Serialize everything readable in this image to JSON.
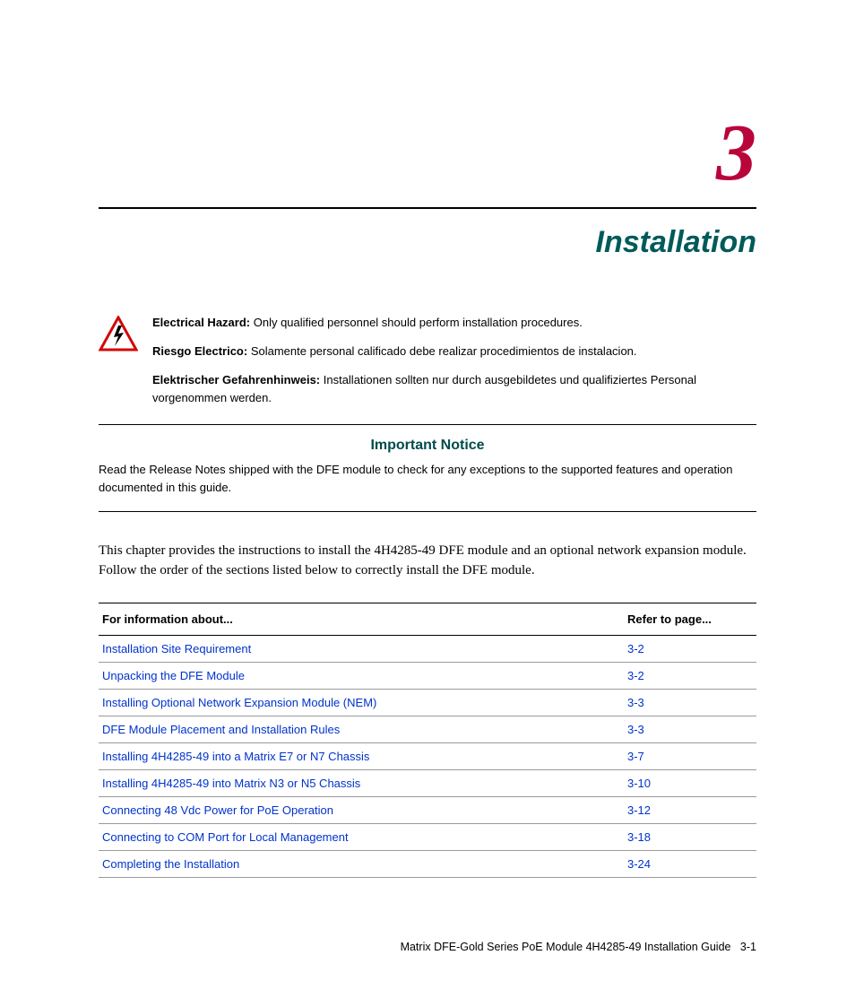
{
  "chapter": {
    "number": "3",
    "number_color": "#b8063a",
    "title": "Installation",
    "title_color": "#005a5a"
  },
  "hazard": {
    "icon_stroke": "#d10808",
    "bolt_fill": "#000000",
    "items": [
      {
        "label": "Electrical Hazard:",
        "text": " Only qualified personnel should perform installation procedures."
      },
      {
        "label": "Riesgo Electrico:",
        "text": " Solamente personal calificado debe realizar procedimientos de instalacion."
      },
      {
        "label": "Elektrischer Gefahrenhinweis:",
        "text": " Installationen sollten nur durch ausgebildetes und qualifiziertes Personal vorgenommen werden."
      }
    ]
  },
  "notice": {
    "title": "Important Notice",
    "body": "Read the Release Notes shipped with the DFE module to check for any exceptions to the supported features and operation documented in this guide."
  },
  "intro": "This chapter provides the instructions to install the 4H4285-49 DFE module and an optional network expansion module. Follow the order of the sections listed below to correctly install the DFE module.",
  "toc": {
    "head_info": "For information about...",
    "head_page": "Refer to page...",
    "link_color": "#0033cc",
    "rows": [
      {
        "title": "Installation Site Requirement",
        "page": "3-2"
      },
      {
        "title": "Unpacking the DFE Module",
        "page": "3-2"
      },
      {
        "title": "Installing Optional Network Expansion Module (NEM)",
        "page": "3-3"
      },
      {
        "title": "DFE Module Placement and Installation Rules",
        "page": "3-3"
      },
      {
        "title": "Installing 4H4285-49 into a Matrix E7 or N7 Chassis",
        "page": "3-7"
      },
      {
        "title": "Installing 4H4285-49 into Matrix N3 or N5 Chassis",
        "page": "3-10"
      },
      {
        "title": "Connecting 48 Vdc Power for PoE Operation",
        "page": "3-12"
      },
      {
        "title": "Connecting to COM Port for Local Management",
        "page": "3-18"
      },
      {
        "title": "Completing the Installation",
        "page": "3-24"
      }
    ]
  },
  "footer": {
    "text": "Matrix DFE-Gold Series PoE Module 4H4285-49 Installation Guide",
    "page": "3-1"
  }
}
